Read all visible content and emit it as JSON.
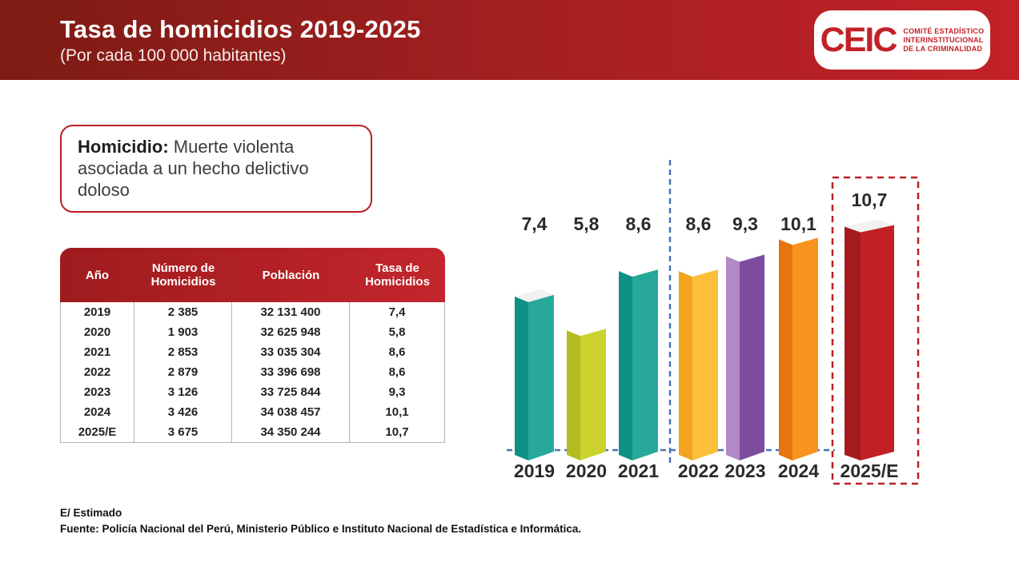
{
  "header": {
    "title": "Tasa de homicidios 2019-2025",
    "subtitle": "(Por cada 100 000 habitantes)",
    "logo": {
      "name": "CEIC",
      "tagline_lines": [
        "COMITÉ ESTADÍSTICO",
        "INTERINSTITUCIONAL",
        "DE LA CRIMINALIDAD"
      ]
    }
  },
  "definition": {
    "term": "Homicidio:",
    "text": " Muerte violenta asociada a un hecho delictivo doloso"
  },
  "table": {
    "columns": [
      "Año",
      "Número de Homicidios",
      "Población",
      "Tasa de Homicidios"
    ],
    "rows": [
      [
        "2019",
        "2 385",
        "32 131 400",
        "7,4"
      ],
      [
        "2020",
        "1 903",
        "32 625 948",
        "5,8"
      ],
      [
        "2021",
        "2 853",
        "33 035 304",
        "8,6"
      ],
      [
        "2022",
        "2 879",
        "33 396 698",
        "8,6"
      ],
      [
        "2023",
        "3 126",
        "33 725 844",
        "9,3"
      ],
      [
        "2024",
        "3 426",
        "34 038 457",
        "10,1"
      ],
      [
        "2025/E",
        "3 675",
        "34 350 244",
        "10,7"
      ]
    ]
  },
  "chart_data": {
    "type": "bar",
    "title": "Tasa de homicidios por cada 100 000 habitantes",
    "categories": [
      "2019",
      "2020",
      "2021",
      "2022",
      "2023",
      "2024",
      "2025/E"
    ],
    "values": [
      7.4,
      5.8,
      8.6,
      8.6,
      9.3,
      10.1,
      10.7
    ],
    "value_labels": [
      "7,4",
      "5,8",
      "8,6",
      "8,6",
      "9,3",
      "10,1",
      "10,7"
    ],
    "xlabel": "",
    "ylabel": "",
    "ylim": [
      0,
      11
    ],
    "grid": false,
    "legend": null,
    "estimated_index": 6,
    "divider_between": [
      "2021",
      "2022"
    ],
    "divider_color": "#4a72b8",
    "highlight_box_color": "#b92025",
    "bar_styles": [
      {
        "left": "#0d9186",
        "right": "#27a89b",
        "cap": "#f1f1ef"
      },
      {
        "left": "#b4bd1f",
        "right": "#cdd32e",
        "cap": null
      },
      {
        "left": "#0d9186",
        "right": "#27a89b",
        "cap": null
      },
      {
        "left": "#f2a41e",
        "right": "#fcbf39",
        "cap": null
      },
      {
        "left": "#b089c7",
        "right": "#7d4c9e",
        "cap": null
      },
      {
        "left": "#e7750e",
        "right": "#f7941e",
        "cap": null
      },
      {
        "left": "#a31b1f",
        "right": "#c22026",
        "cap": "#f1f1ef"
      }
    ]
  },
  "footnote": {
    "estimate": "E/ Estimado",
    "source": "Fuente: Policía Nacional del Perú, Ministerio Público e Instituto Nacional de Estadística e Informática."
  },
  "colors": {
    "brand_red": "#b92025",
    "header_gradient_left": "#7d1b14",
    "header_gradient_right": "#c22127",
    "table_header_gradient_left": "#9e1b1d",
    "table_header_gradient_right": "#c3262c"
  }
}
